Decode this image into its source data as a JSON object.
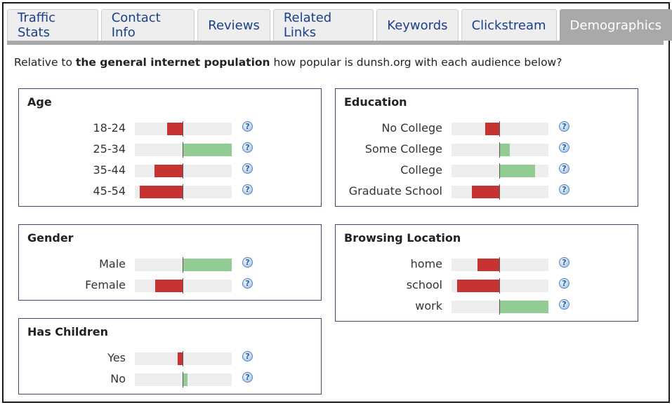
{
  "tabs": [
    {
      "label": "Traffic Stats",
      "active": false
    },
    {
      "label": "Contact Info",
      "active": false
    },
    {
      "label": "Reviews",
      "active": false
    },
    {
      "label": "Related Links",
      "active": false
    },
    {
      "label": "Keywords",
      "active": false
    },
    {
      "label": "Clickstream",
      "active": false
    },
    {
      "label": "Demographics",
      "active": true
    }
  ],
  "intro": {
    "before": "Relative to ",
    "bold": "the general internet population",
    "after": " how popular is dunsh.org with each audience below?"
  },
  "help_glyph": "?",
  "colors": {
    "negative": "#c73232",
    "positive": "#92cc92",
    "track": "#eeeeee",
    "active_tab": "#a9a9a9",
    "link": "#1c3f8c"
  },
  "scale_note_min_max": [
    -1,
    1
  ],
  "panels": [
    {
      "id": "age",
      "title": "Age",
      "rows": [
        {
          "label": "18-24",
          "value": -0.33
        },
        {
          "label": "25-34",
          "value": 1.0
        },
        {
          "label": "35-44",
          "value": -0.6
        },
        {
          "label": "45-54",
          "value": -0.9
        }
      ]
    },
    {
      "id": "education",
      "title": "Education",
      "rows": [
        {
          "label": "No College",
          "value": -0.3
        },
        {
          "label": "Some College",
          "value": 0.2
        },
        {
          "label": "College",
          "value": 0.72
        },
        {
          "label": "Graduate School",
          "value": -0.58
        }
      ]
    },
    {
      "id": "gender",
      "title": "Gender",
      "rows": [
        {
          "label": "Male",
          "value": 1.0
        },
        {
          "label": "Female",
          "value": -0.58
        }
      ]
    },
    {
      "id": "browsing-location",
      "title": "Browsing Location",
      "rows": [
        {
          "label": "home",
          "value": -0.47
        },
        {
          "label": "school",
          "value": -0.88
        },
        {
          "label": "work",
          "value": 1.0
        }
      ]
    },
    {
      "id": "has-children",
      "title": "Has Children",
      "rows": [
        {
          "label": "Yes",
          "value": -0.12
        },
        {
          "label": "No",
          "value": 0.08
        }
      ]
    }
  ]
}
